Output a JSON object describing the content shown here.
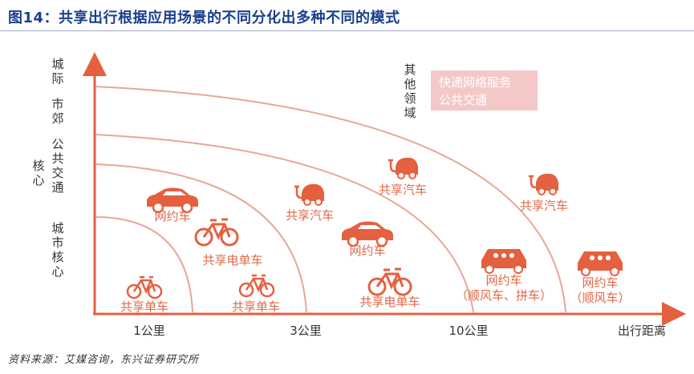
{
  "title": "图14：共享出行根据应用场景的不同分化出多种不同的模式",
  "source": "资料来源：艾媒咨询，东兴证券研究所",
  "y_axis": {
    "levels": [
      {
        "lines": [
          "城",
          "市",
          "核",
          "心"
        ]
      },
      {
        "lines": [
          "核",
          "心"
        ]
      },
      {
        "lines": [
          "公",
          "共",
          "交",
          "通"
        ]
      },
      {
        "lines": [
          "市",
          "郊"
        ]
      },
      {
        "lines": [
          "城",
          "际"
        ]
      }
    ]
  },
  "x_axis": {
    "ticks": [
      "1公里",
      "3公里",
      "10公里"
    ],
    "label": "出行距离"
  },
  "other_area": {
    "lines": [
      "其",
      "他",
      "领",
      "域"
    ]
  },
  "legend_box": {
    "line1": "快递网络服务",
    "line2": "公共交通",
    "color": "#f5c8c8"
  },
  "items": [
    {
      "icon": "bicycle-icon",
      "label": "共享单车"
    },
    {
      "icon": "car-icon",
      "label": "网约车"
    },
    {
      "icon": "ebike-icon",
      "label": "共享电单车"
    },
    {
      "icon": "bicycle-icon",
      "label": "共享单车"
    },
    {
      "icon": "ev-car-icon",
      "label": "共享汽车"
    },
    {
      "icon": "car-icon",
      "label": "网约车"
    },
    {
      "icon": "ebike-icon",
      "label": "共享电单车"
    },
    {
      "icon": "ev-car-icon",
      "label": "共享汽车"
    },
    {
      "icon": "carpool-car-icon",
      "label": "网约车",
      "sub": "（顺风车、拼车）"
    },
    {
      "icon": "ev-car-icon",
      "label": "共享汽车"
    },
    {
      "icon": "carpool-car-icon",
      "label": "网约车",
      "sub": "（顺风车）"
    }
  ],
  "colors": {
    "accent": "#e5603f",
    "axis": "#e5603f",
    "arc": "#e5a896",
    "title": "#1a3f8f"
  }
}
